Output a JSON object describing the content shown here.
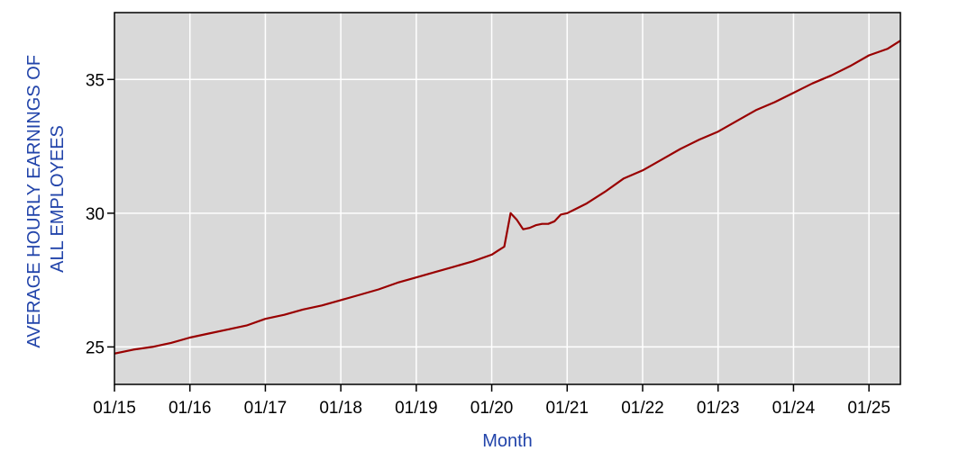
{
  "chart_data": {
    "type": "line",
    "title": "",
    "xlabel": "Month",
    "ylabel": "AVERAGE HOURLY EARNINGS OF ALL EMPLOYEES",
    "ylabel_lines": [
      "AVERAGE HOURLY EARNINGS OF",
      "ALL EMPLOYEES"
    ],
    "xlim": [
      "2015-01",
      "2025-06"
    ],
    "ylim": [
      23.6,
      37.5
    ],
    "x_ticks": [
      "01/15",
      "01/16",
      "01/17",
      "01/18",
      "01/19",
      "01/20",
      "01/21",
      "01/22",
      "01/23",
      "01/24",
      "01/25"
    ],
    "y_ticks": [
      25,
      30,
      35
    ],
    "grid": true,
    "legend": "none",
    "colors": {
      "plot_background": "#d9d9d9",
      "grid": "#ffffff",
      "line": "#990000",
      "axis_title": "#2244aa"
    },
    "series": [
      {
        "x": [
          "2015-01",
          "2015-04",
          "2015-07",
          "2015-10",
          "2016-01",
          "2016-04",
          "2016-07",
          "2016-10",
          "2017-01",
          "2017-04",
          "2017-07",
          "2017-10",
          "2018-01",
          "2018-04",
          "2018-07",
          "2018-10",
          "2019-01",
          "2019-04",
          "2019-07",
          "2019-10",
          "2020-01",
          "2020-02",
          "2020-03",
          "2020-04",
          "2020-05",
          "2020-06",
          "2020-07",
          "2020-08",
          "2020-09",
          "2020-10",
          "2020-11",
          "2020-12",
          "2021-01",
          "2021-04",
          "2021-07",
          "2021-10",
          "2022-01",
          "2022-04",
          "2022-07",
          "2022-10",
          "2023-01",
          "2023-04",
          "2023-07",
          "2023-10",
          "2024-01",
          "2024-04",
          "2024-07",
          "2024-10",
          "2025-01",
          "2025-04",
          "2025-06"
        ],
        "values": [
          24.75,
          24.9,
          25.0,
          25.15,
          25.35,
          25.5,
          25.65,
          25.8,
          26.05,
          26.2,
          26.4,
          26.55,
          26.75,
          26.95,
          27.15,
          27.4,
          27.6,
          27.8,
          28.0,
          28.2,
          28.45,
          28.6,
          28.75,
          30.0,
          29.75,
          29.4,
          29.45,
          29.55,
          29.6,
          29.6,
          29.7,
          29.95,
          30.0,
          30.35,
          30.8,
          31.3,
          31.6,
          32.0,
          32.4,
          32.75,
          33.05,
          33.45,
          33.85,
          34.15,
          34.5,
          34.85,
          35.15,
          35.5,
          35.9,
          36.15,
          36.45
        ]
      }
    ]
  }
}
